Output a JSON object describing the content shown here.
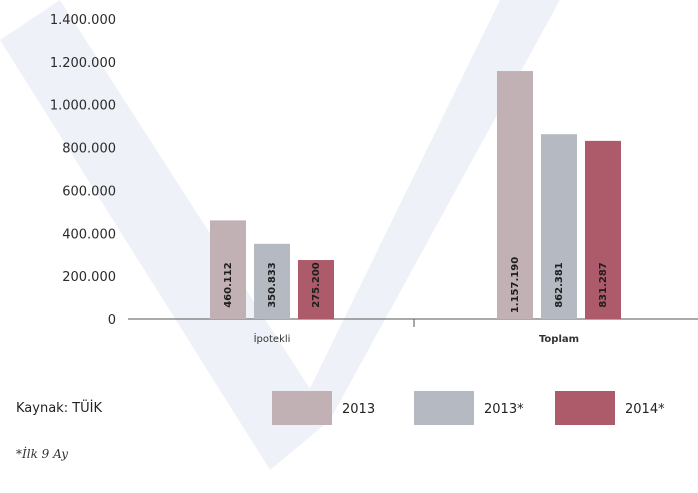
{
  "chart_data": {
    "type": "bar",
    "categories": [
      "İpotekli",
      "Toplam"
    ],
    "series": [
      {
        "name": "2013",
        "values": [
          460112,
          1157190
        ],
        "value_labels": [
          "460.112",
          "1.157.190"
        ],
        "color": "#c2b1b4"
      },
      {
        "name": "2013*",
        "values": [
          350833,
          862381
        ],
        "value_labels": [
          "350.833",
          "862.381"
        ],
        "color": "#b5bac2"
      },
      {
        "name": "2014*",
        "values": [
          275200,
          831287
        ],
        "value_labels": [
          "275.200",
          "831.287"
        ],
        "color": "#ad5a6a"
      }
    ],
    "ylim": [
      0,
      1400000
    ],
    "y_ticks": [
      0,
      200000,
      400000,
      600000,
      800000,
      1000000,
      1200000,
      1400000
    ],
    "y_tick_labels": [
      "0",
      "200.000",
      "400.000",
      "600.000",
      "800.000",
      "1.000.000",
      "1.200.000",
      "1.400.000"
    ],
    "legend_position": "bottom",
    "grid": false
  },
  "footer": {
    "source": "Kaynak: TÜİK",
    "note": "*İlk 9 Ay"
  },
  "colors": {
    "axis": "#555555",
    "watermark": "#e6ecf4"
  }
}
